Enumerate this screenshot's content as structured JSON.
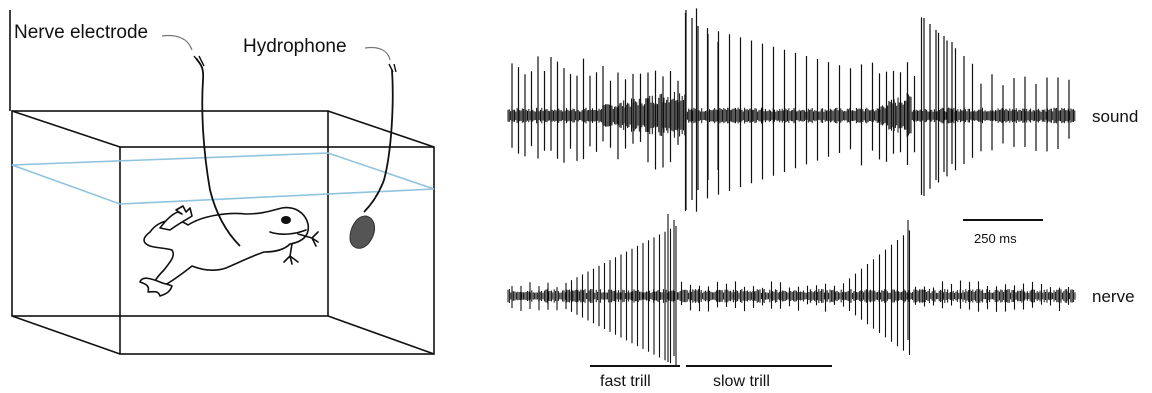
{
  "labels": {
    "nerve_electrode": "Nerve electrode",
    "hydrophone": "Hydrophone",
    "sound": "sound",
    "nerve": "nerve",
    "scale_bar": "250 ms",
    "fast_trill": "fast trill",
    "slow_trill": "slow trill"
  },
  "colors": {
    "ink": "#111111",
    "water_line": "#8fc3df",
    "hydrophone_fill": "#555555"
  }
}
